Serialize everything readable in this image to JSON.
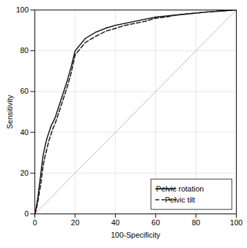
{
  "chart_data": {
    "type": "line",
    "xlabel": "100-Specificity",
    "ylabel": "Sensitivity",
    "xlim": [
      0,
      100
    ],
    "ylim": [
      0,
      100
    ],
    "xticks": [
      0,
      20,
      40,
      60,
      80,
      100
    ],
    "yticks": [
      0,
      20,
      40,
      60,
      80,
      100
    ],
    "grid": true,
    "legend": "lower right",
    "series": [
      {
        "color": "#b0b0b0",
        "line_style": "solid",
        "x": [
          0,
          100
        ],
        "values": [
          0,
          100
        ]
      },
      {
        "name": "Pelvic rotation",
        "color": "#1a1a1a",
        "line_style": "solid",
        "x": [
          0,
          0.5,
          1,
          1.5,
          2,
          2.5,
          3,
          3.5,
          4,
          5,
          6,
          7,
          8,
          9,
          10,
          12,
          14,
          16,
          18,
          20,
          25,
          30,
          35,
          40,
          45,
          50,
          55,
          60,
          65,
          70,
          75,
          80,
          85,
          90,
          95,
          100
        ],
        "values": [
          0,
          2,
          5,
          8,
          12,
          16,
          20,
          24,
          28,
          33,
          37,
          40,
          43,
          45,
          47,
          53,
          59,
          65,
          72,
          80,
          86,
          89,
          91,
          92.5,
          93.5,
          94.5,
          95.5,
          96.5,
          97,
          97.5,
          98,
          98.5,
          99,
          99.3,
          99.7,
          100
        ]
      },
      {
        "name": "Pelvic tilt",
        "color": "#1a1a1a",
        "line_style": "dashed",
        "x": [
          0,
          0.5,
          1,
          1.5,
          2,
          2.5,
          3,
          3.5,
          4,
          5,
          6,
          7,
          8,
          9,
          10,
          12,
          14,
          16,
          18,
          20,
          25,
          30,
          35,
          40,
          45,
          50,
          55,
          60,
          65,
          70,
          75,
          80,
          85,
          90,
          95,
          100
        ],
        "values": [
          0,
          1.5,
          3.5,
          6,
          9,
          12,
          15,
          19,
          23,
          28,
          32,
          36,
          39,
          42,
          44,
          50,
          56,
          62,
          69,
          78,
          84,
          87,
          89.5,
          91,
          92.5,
          93.5,
          94.5,
          96,
          96.5,
          97.5,
          98,
          98.5,
          99,
          99.3,
          99.7,
          100
        ]
      }
    ]
  }
}
